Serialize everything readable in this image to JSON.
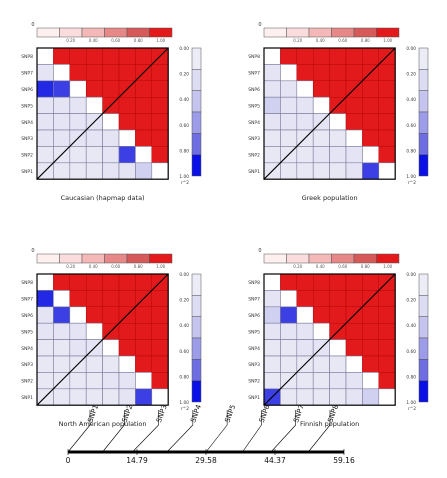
{
  "chart_data": [
    {
      "type": "heatmap",
      "title": "Caucasian (hapmap data)",
      "snps": [
        "SNP8",
        "SNP7",
        "SNP6",
        "SNP5",
        "SNP4",
        "SNP3",
        "SNP2",
        "SNP1"
      ],
      "upper_color": "#e31a1c",
      "lower_r2": [
        [
          0.05,
          0.05,
          0.05,
          0.05,
          0.1,
          0.1,
          0.3,
          0.0
        ],
        [
          0.05,
          0.05,
          0.05,
          0.05,
          0.1,
          0.9,
          0.0,
          0.0
        ],
        [
          0.1,
          0.1,
          0.1,
          0.1,
          0.1,
          0.0,
          0.0,
          0.0
        ],
        [
          0.1,
          0.1,
          0.1,
          0.1,
          0.0,
          0.0,
          0.0,
          0.0
        ],
        [
          0.1,
          0.1,
          0.1,
          0.0,
          0.0,
          0.0,
          0.0,
          0.0
        ],
        [
          0.95,
          0.9,
          0.0,
          0.0,
          0.0,
          0.0,
          0.0,
          0.0
        ],
        [
          0.1,
          0.0,
          0.0,
          0.0,
          0.0,
          0.0,
          0.0,
          0.0
        ],
        [
          0.0,
          0.0,
          0.0,
          0.0,
          0.0,
          0.0,
          0.0,
          0.0
        ]
      ]
    },
    {
      "type": "heatmap",
      "title": "Greek population",
      "snps": [
        "SNP8",
        "SNP7",
        "SNP6",
        "SNP5",
        "SNP4",
        "SNP3",
        "SNP2",
        "SNP1"
      ],
      "upper_color": "#e31a1c",
      "lower_r2": [
        [
          0.05,
          0.05,
          0.05,
          0.05,
          0.05,
          0.1,
          0.9,
          0.0
        ],
        [
          0.05,
          0.05,
          0.05,
          0.1,
          0.1,
          0.1,
          0.0,
          0.0
        ],
        [
          0.05,
          0.05,
          0.05,
          0.05,
          0.05,
          0.0,
          0.0,
          0.0
        ],
        [
          0.1,
          0.1,
          0.1,
          0.1,
          0.0,
          0.0,
          0.0,
          0.0
        ],
        [
          0.3,
          0.1,
          0.1,
          0.0,
          0.0,
          0.0,
          0.0,
          0.0
        ],
        [
          0.1,
          0.1,
          0.0,
          0.0,
          0.0,
          0.0,
          0.0,
          0.0
        ],
        [
          0.1,
          0.0,
          0.0,
          0.0,
          0.0,
          0.0,
          0.0,
          0.0
        ],
        [
          0.0,
          0.0,
          0.0,
          0.0,
          0.0,
          0.0,
          0.0,
          0.0
        ]
      ]
    },
    {
      "type": "heatmap",
      "title": "North American population",
      "snps": [
        "SNP8",
        "SNP7",
        "SNP6",
        "SNP5",
        "SNP4",
        "SNP3",
        "SNP2",
        "SNP1"
      ],
      "upper_color": "#e31a1c",
      "lower_r2": [
        [
          0.05,
          0.05,
          0.05,
          0.05,
          0.05,
          0.1,
          0.9,
          0.0
        ],
        [
          0.05,
          0.05,
          0.05,
          0.05,
          0.1,
          0.1,
          0.0,
          0.0
        ],
        [
          0.05,
          0.05,
          0.05,
          0.05,
          0.05,
          0.0,
          0.0,
          0.0
        ],
        [
          0.05,
          0.05,
          0.1,
          0.1,
          0.0,
          0.0,
          0.0,
          0.0
        ],
        [
          0.1,
          0.1,
          0.1,
          0.0,
          0.0,
          0.0,
          0.0,
          0.0
        ],
        [
          0.1,
          0.9,
          0.0,
          0.0,
          0.0,
          0.0,
          0.0,
          0.0
        ],
        [
          0.95,
          0.0,
          0.0,
          0.0,
          0.0,
          0.0,
          0.0,
          0.0
        ],
        [
          0.0,
          0.0,
          0.0,
          0.0,
          0.0,
          0.0,
          0.0,
          0.0
        ]
      ]
    },
    {
      "type": "heatmap",
      "title": "Finnish population",
      "snps": [
        "SNP8",
        "SNP7",
        "SNP6",
        "SNP5",
        "SNP4",
        "SNP3",
        "SNP2",
        "SNP1"
      ],
      "upper_color": "#e31a1c",
      "lower_r2": [
        [
          0.9,
          0.05,
          0.05,
          0.05,
          0.05,
          0.1,
          0.3,
          0.0
        ],
        [
          0.05,
          0.05,
          0.05,
          0.05,
          0.1,
          0.1,
          0.0,
          0.0
        ],
        [
          0.05,
          0.05,
          0.05,
          0.05,
          0.05,
          0.0,
          0.0,
          0.0
        ],
        [
          0.05,
          0.05,
          0.1,
          0.1,
          0.0,
          0.0,
          0.0,
          0.0
        ],
        [
          0.1,
          0.1,
          0.1,
          0.0,
          0.0,
          0.0,
          0.0,
          0.0
        ],
        [
          0.3,
          0.9,
          0.0,
          0.0,
          0.0,
          0.0,
          0.0,
          0.0
        ],
        [
          0.1,
          0.0,
          0.0,
          0.0,
          0.0,
          0.0,
          0.0,
          0.0
        ],
        [
          0.0,
          0.0,
          0.0,
          0.0,
          0.0,
          0.0,
          0.0,
          0.0
        ]
      ]
    }
  ],
  "color_scales": {
    "dprime_ticks": [
      "0",
      "0.20",
      "0.40",
      "0.60",
      "0.80",
      "1.00"
    ],
    "dprime_colors": [
      "#fff0f0",
      "#fbdcdc",
      "#f4b8b8",
      "#e68888",
      "#d65a5a",
      "#e31a1c"
    ],
    "r2_ticks": [
      "0.00",
      "0.20",
      "0.40",
      "0.60",
      "0.80",
      "1.00"
    ],
    "r2_colors": [
      "#ececf6",
      "#dcdcf2",
      "#c4c4ee",
      "#9c9ce8",
      "#6e6ee2",
      "#0a10e6"
    ],
    "r2_label": "r^2"
  },
  "colors": {
    "grid": "#7a7a9a",
    "lowfill": "#dde0f2",
    "frame": "#000000"
  },
  "snp_axis": {
    "snps": [
      "SNP1",
      "SNP2",
      "SNP3",
      "SNP4",
      "SNP5",
      "SNP6",
      "SNP7",
      "SNP8"
    ],
    "positions": [
      0,
      7.4,
      13.8,
      21.2,
      29.58,
      37.4,
      43.5,
      51.5
    ],
    "ticks": [
      0,
      14.79,
      29.58,
      44.37,
      59.16
    ],
    "tick_labels": [
      "0",
      "14.79",
      "29.58",
      "44.37",
      "59.16"
    ],
    "range": [
      0,
      59.16
    ]
  }
}
